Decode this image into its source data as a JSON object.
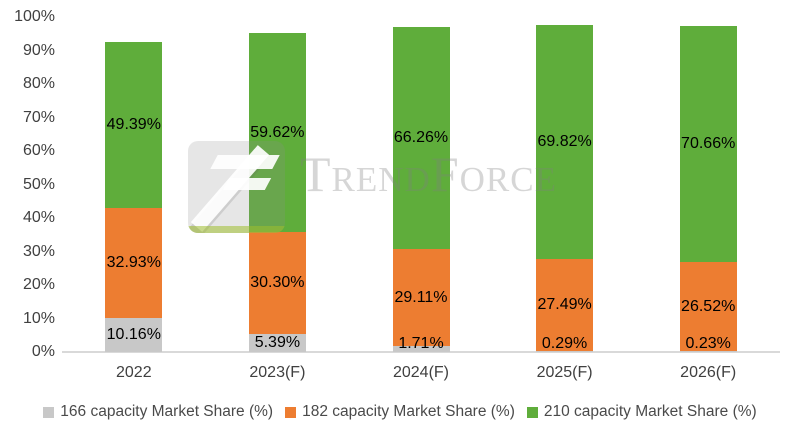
{
  "chart_data": {
    "type": "bar",
    "stacked": true,
    "categories": [
      "2022",
      "2023(F)",
      "2024(F)",
      "2025(F)",
      "2026(F)"
    ],
    "series": [
      {
        "name": "166 capacity Market Share (%)",
        "color": "#C8C8C8",
        "values": [
          10.16,
          5.39,
          1.71,
          0.29,
          0.23
        ],
        "labels": [
          "10.16%",
          "5.39%",
          "1.71%",
          "0.29%",
          "0.23%"
        ]
      },
      {
        "name": "182 capacity Market Share (%)",
        "color": "#ED7D31",
        "values": [
          32.93,
          30.3,
          29.11,
          27.49,
          26.52
        ],
        "labels": [
          "32.93%",
          "30.30%",
          "29.11%",
          "27.49%",
          "26.52%"
        ]
      },
      {
        "name": "210 capacity Market Share (%)",
        "color": "#5FAD3B",
        "values": [
          49.39,
          59.62,
          66.26,
          69.82,
          70.66
        ],
        "labels": [
          "49.39%",
          "59.62%",
          "66.26%",
          "69.82%",
          "70.66%"
        ]
      }
    ],
    "y_axis": {
      "min": 0,
      "max": 100,
      "ticks": [
        "0%",
        "10%",
        "20%",
        "30%",
        "40%",
        "50%",
        "60%",
        "70%",
        "80%",
        "90%",
        "100%"
      ]
    },
    "grid": false,
    "legend_position": "bottom",
    "data_label_color": "#000000",
    "axis_text_color": "#404040",
    "axis_line_color": "#D9D9D9"
  },
  "watermark": {
    "text": "TrendForce"
  }
}
